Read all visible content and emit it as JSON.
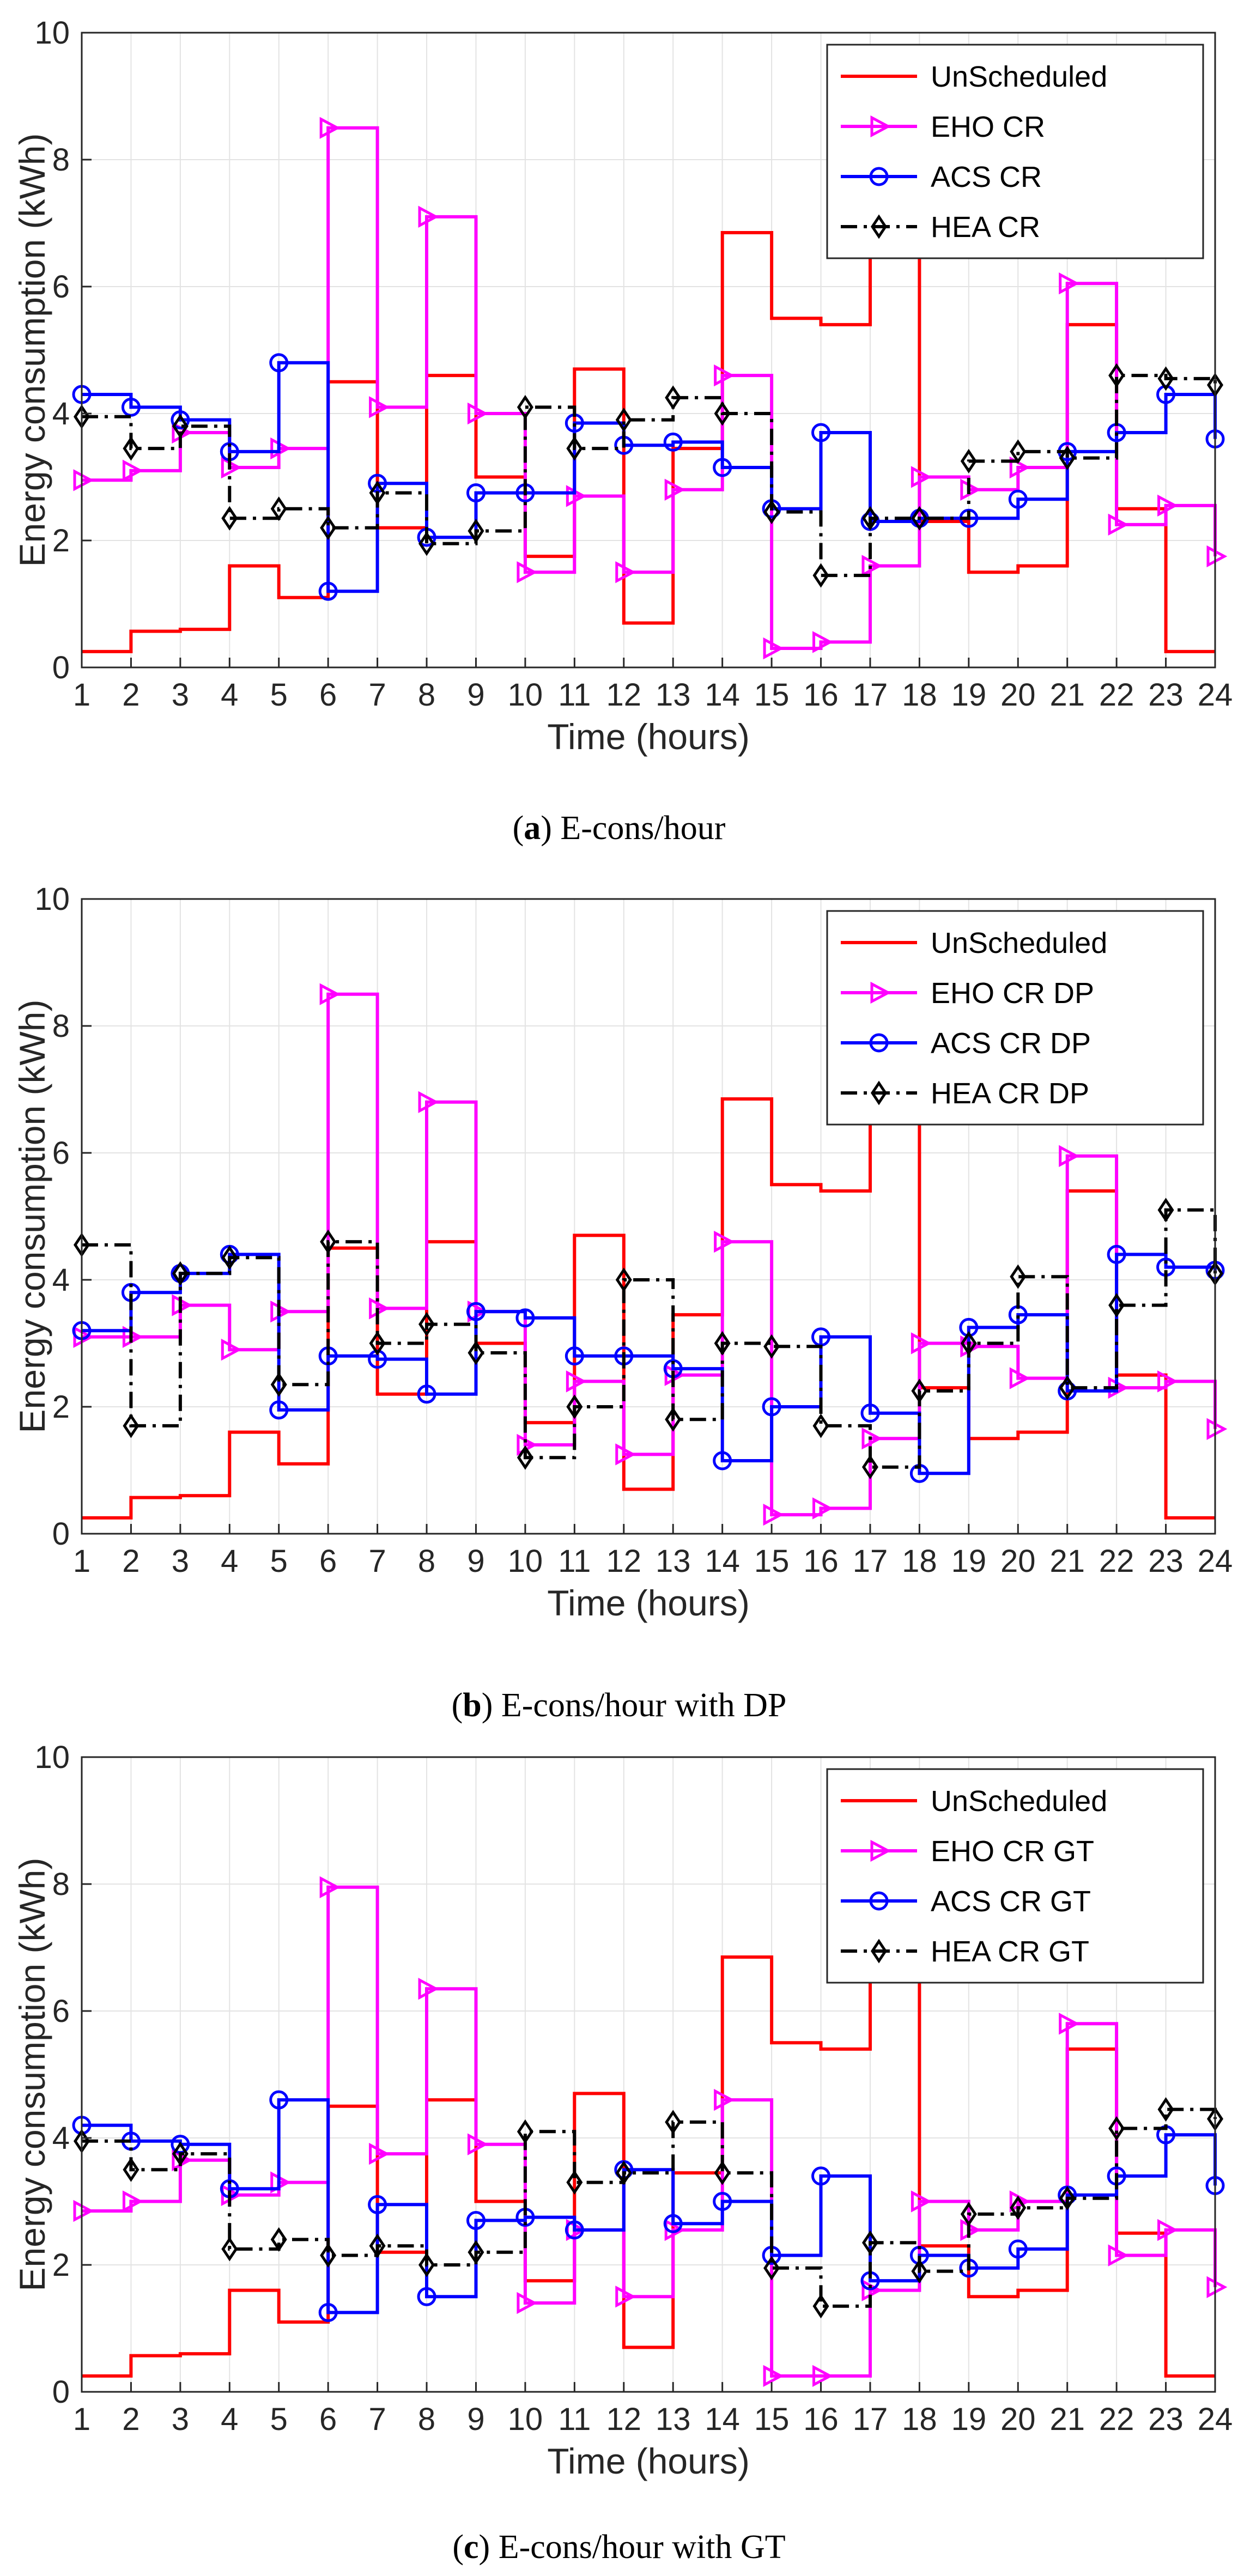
{
  "panels": [
    {
      "caption": {
        "letter": "a",
        "text": " E-cons/hour"
      },
      "chart_data": {
        "type": "line",
        "step": "post",
        "xlabel": "Time (hours)",
        "ylabel": "Energy consumption (kWh)",
        "xlim": [
          1,
          24
        ],
        "ylim": [
          0,
          10
        ],
        "xticks": [
          "1",
          "2",
          "3",
          "4",
          "5",
          "6",
          "7",
          "8",
          "9",
          "10",
          "11",
          "12",
          "13",
          "14",
          "15",
          "16",
          "17",
          "18",
          "19",
          "20",
          "21",
          "22",
          "23",
          "24"
        ],
        "yticks": [
          "0",
          "2",
          "4",
          "6",
          "8",
          "10"
        ],
        "grid": true,
        "legend_position": "top-right",
        "x": [
          1,
          2,
          3,
          4,
          5,
          6,
          7,
          8,
          9,
          10,
          11,
          12,
          13,
          14,
          15,
          16,
          17,
          18,
          19,
          20,
          21,
          22,
          23,
          24
        ],
        "series": [
          {
            "name": "UnScheduled",
            "color": "#ff0000",
            "style": "solid",
            "marker": "none",
            "values": [
              0.25,
              0.57,
              0.6,
              1.6,
              1.1,
              4.5,
              2.2,
              4.6,
              3.0,
              1.75,
              4.7,
              0.7,
              3.45,
              6.85,
              5.5,
              5.4,
              6.8,
              2.3,
              1.5,
              1.6,
              5.4,
              2.5,
              0.25,
              0.25
            ]
          },
          {
            "name": "EHO CR",
            "color": "#ff00ff",
            "style": "solid",
            "marker": "triangle-right",
            "values": [
              2.95,
              3.1,
              3.7,
              3.15,
              3.45,
              8.5,
              4.1,
              7.1,
              4.0,
              1.5,
              2.7,
              1.5,
              2.8,
              4.6,
              0.3,
              0.4,
              1.6,
              3.0,
              2.8,
              3.15,
              6.05,
              2.25,
              2.55,
              1.75
            ]
          },
          {
            "name": "ACS CR",
            "color": "#0000ff",
            "style": "solid",
            "marker": "circle",
            "values": [
              4.3,
              4.1,
              3.9,
              3.4,
              4.8,
              1.2,
              2.9,
              2.05,
              2.75,
              2.75,
              3.85,
              3.5,
              3.55,
              3.15,
              2.5,
              3.7,
              2.3,
              2.35,
              2.35,
              2.65,
              3.4,
              3.7,
              4.3,
              3.6
            ]
          },
          {
            "name": "HEA CR",
            "color": "#000000",
            "style": "dashdot",
            "marker": "diamond",
            "values": [
              3.95,
              3.45,
              3.8,
              2.35,
              2.5,
              2.2,
              2.75,
              1.95,
              2.15,
              4.1,
              3.45,
              3.9,
              4.25,
              4.0,
              2.45,
              1.45,
              2.35,
              2.35,
              3.25,
              3.4,
              3.3,
              4.6,
              4.55,
              4.45
            ]
          }
        ]
      }
    },
    {
      "caption": {
        "letter": "b",
        "text": " E-cons/hour with DP"
      },
      "chart_data": {
        "type": "line",
        "step": "post",
        "xlabel": "Time (hours)",
        "ylabel": "Energy consumption (kWh)",
        "xlim": [
          1,
          24
        ],
        "ylim": [
          0,
          10
        ],
        "xticks": [
          "1",
          "2",
          "3",
          "4",
          "5",
          "6",
          "7",
          "8",
          "9",
          "10",
          "11",
          "12",
          "13",
          "14",
          "15",
          "16",
          "17",
          "18",
          "19",
          "20",
          "21",
          "22",
          "23",
          "24"
        ],
        "yticks": [
          "0",
          "2",
          "4",
          "6",
          "8",
          "10"
        ],
        "grid": true,
        "legend_position": "top-right",
        "x": [
          1,
          2,
          3,
          4,
          5,
          6,
          7,
          8,
          9,
          10,
          11,
          12,
          13,
          14,
          15,
          16,
          17,
          18,
          19,
          20,
          21,
          22,
          23,
          24
        ],
        "series": [
          {
            "name": "UnScheduled",
            "color": "#ff0000",
            "style": "solid",
            "marker": "none",
            "values": [
              0.25,
              0.57,
              0.6,
              1.6,
              1.1,
              4.5,
              2.2,
              4.6,
              3.0,
              1.75,
              4.7,
              0.7,
              3.45,
              6.85,
              5.5,
              5.4,
              6.8,
              2.3,
              1.5,
              1.6,
              5.4,
              2.5,
              0.25,
              0.25
            ]
          },
          {
            "name": "EHO CR DP",
            "color": "#ff00ff",
            "style": "solid",
            "marker": "triangle-right",
            "values": [
              3.1,
              3.1,
              3.6,
              2.9,
              3.5,
              8.5,
              3.55,
              6.8,
              3.5,
              1.4,
              2.4,
              1.25,
              2.5,
              4.6,
              0.3,
              0.4,
              1.5,
              3.0,
              2.95,
              2.45,
              5.95,
              2.3,
              2.4,
              1.65
            ]
          },
          {
            "name": "ACS CR DP",
            "color": "#0000ff",
            "style": "solid",
            "marker": "circle",
            "values": [
              3.2,
              3.8,
              4.1,
              4.4,
              1.95,
              2.8,
              2.75,
              2.2,
              3.5,
              3.4,
              2.8,
              2.8,
              2.6,
              1.15,
              2.0,
              3.1,
              1.9,
              0.95,
              3.25,
              3.45,
              2.25,
              4.4,
              4.2,
              4.15
            ]
          },
          {
            "name": "HEA CR DP",
            "color": "#000000",
            "style": "dashdot",
            "marker": "diamond",
            "values": [
              4.55,
              1.7,
              4.1,
              4.35,
              2.35,
              4.6,
              3.0,
              3.3,
              2.85,
              1.2,
              2.0,
              4.0,
              1.8,
              3.0,
              2.95,
              1.7,
              1.05,
              2.25,
              3.0,
              4.05,
              2.3,
              3.6,
              5.1,
              4.1
            ]
          }
        ]
      }
    },
    {
      "caption": {
        "letter": "c",
        "text": " E-cons/hour with GT"
      },
      "chart_data": {
        "type": "line",
        "step": "post",
        "xlabel": "Time (hours)",
        "ylabel": "Energy consumption (kWh)",
        "xlim": [
          1,
          24
        ],
        "ylim": [
          0,
          10
        ],
        "xticks": [
          "1",
          "2",
          "3",
          "4",
          "5",
          "6",
          "7",
          "8",
          "9",
          "10",
          "11",
          "12",
          "13",
          "14",
          "15",
          "16",
          "17",
          "18",
          "19",
          "20",
          "21",
          "22",
          "23",
          "24"
        ],
        "yticks": [
          "0",
          "2",
          "4",
          "6",
          "8",
          "10"
        ],
        "grid": true,
        "legend_position": "top-right",
        "x": [
          1,
          2,
          3,
          4,
          5,
          6,
          7,
          8,
          9,
          10,
          11,
          12,
          13,
          14,
          15,
          16,
          17,
          18,
          19,
          20,
          21,
          22,
          23,
          24
        ],
        "series": [
          {
            "name": "UnScheduled",
            "color": "#ff0000",
            "style": "solid",
            "marker": "none",
            "values": [
              0.25,
              0.57,
              0.6,
              1.6,
              1.1,
              4.5,
              2.2,
              4.6,
              3.0,
              1.75,
              4.7,
              0.7,
              3.45,
              6.85,
              5.5,
              5.4,
              6.8,
              2.3,
              1.5,
              1.6,
              5.4,
              2.5,
              0.25,
              0.25
            ]
          },
          {
            "name": "EHO CR GT",
            "color": "#ff00ff",
            "style": "solid",
            "marker": "triangle-right",
            "values": [
              2.85,
              3.0,
              3.65,
              3.1,
              3.3,
              7.95,
              3.75,
              6.35,
              3.9,
              1.4,
              2.55,
              1.5,
              2.55,
              4.6,
              0.25,
              0.25,
              1.6,
              3.0,
              2.55,
              3.0,
              5.8,
              2.15,
              2.55,
              1.65
            ]
          },
          {
            "name": "ACS CR GT",
            "color": "#0000ff",
            "style": "solid",
            "marker": "circle",
            "values": [
              4.2,
              3.95,
              3.9,
              3.2,
              4.6,
              1.25,
              2.95,
              1.5,
              2.7,
              2.75,
              2.55,
              3.5,
              2.65,
              3.0,
              2.15,
              3.4,
              1.75,
              2.15,
              1.95,
              2.25,
              3.1,
              3.4,
              4.05,
              3.25
            ]
          },
          {
            "name": "HEA CR GT",
            "color": "#000000",
            "style": "dashdot",
            "marker": "diamond",
            "values": [
              3.95,
              3.5,
              3.75,
              2.25,
              2.4,
              2.15,
              2.3,
              2.0,
              2.2,
              4.1,
              3.3,
              3.45,
              4.25,
              3.45,
              1.95,
              1.35,
              2.35,
              1.9,
              2.8,
              2.9,
              3.05,
              4.15,
              4.45,
              4.3
            ]
          }
        ]
      }
    }
  ]
}
